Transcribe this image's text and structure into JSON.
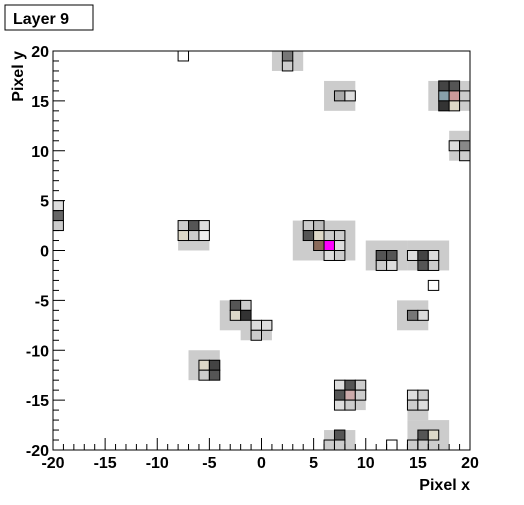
{
  "chart_data": {
    "type": "pixel-map",
    "title": "Layer 9",
    "x_label": "Pixel x",
    "y_label": "Pixel y",
    "xlim": [
      -20,
      20
    ],
    "ylim": [
      -20,
      20
    ],
    "xticks": [
      -20,
      -15,
      -10,
      -5,
      0,
      5,
      10,
      15,
      20
    ],
    "yticks": [
      -20,
      -15,
      -10,
      -5,
      0,
      5,
      10,
      15,
      20
    ],
    "region_color": "#cccccc",
    "regions": [
      {
        "x0": 1,
        "x1": 4,
        "y0": 18,
        "y1": 20
      },
      {
        "x0": 6,
        "x1": 9,
        "y0": 14,
        "y1": 17
      },
      {
        "x0": 16,
        "x1": 20,
        "y0": 14,
        "y1": 17
      },
      {
        "x0": 18,
        "x1": 20,
        "y0": 9,
        "y1": 12
      },
      {
        "x0": -20,
        "x1": -19,
        "y0": 2,
        "y1": 5
      },
      {
        "x0": -8,
        "x1": -5,
        "y0": 0,
        "y1": 3
      },
      {
        "x0": 3,
        "x1": 9,
        "y0": -1,
        "y1": 3
      },
      {
        "x0": 10,
        "x1": 14,
        "y0": -2,
        "y1": 1
      },
      {
        "x0": 14,
        "x1": 18,
        "y0": -2,
        "y1": 1
      },
      {
        "x0": -4,
        "x1": -1,
        "y0": -8,
        "y1": -5
      },
      {
        "x0": -2,
        "x1": 1,
        "y0": -9,
        "y1": -7
      },
      {
        "x0": 13,
        "x1": 16,
        "y0": -8,
        "y1": -5
      },
      {
        "x0": -7,
        "x1": -4,
        "y0": -13,
        "y1": -10
      },
      {
        "x0": 7,
        "x1": 10,
        "y0": -16,
        "y1": -13
      },
      {
        "x0": 14,
        "x1": 16,
        "y0": -17,
        "y1": -14
      },
      {
        "x0": 6,
        "x1": 9,
        "y0": -20,
        "y1": -18
      },
      {
        "x0": 14,
        "x1": 18,
        "y0": -20,
        "y1": -17
      }
    ],
    "cells": [
      {
        "x": -8,
        "y": 19,
        "color": "#ffffff"
      },
      {
        "x": 2,
        "y": 19,
        "color": "#777777"
      },
      {
        "x": 2,
        "y": 18,
        "color": "#cccccc"
      },
      {
        "x": 7,
        "y": 15,
        "color": "#aaaaaa"
      },
      {
        "x": 8,
        "y": 15,
        "color": "#dddddd"
      },
      {
        "x": 17,
        "y": 16,
        "color": "#444444"
      },
      {
        "x": 18,
        "y": 16,
        "color": "#555555"
      },
      {
        "x": 17,
        "y": 15,
        "color": "#88a0aa"
      },
      {
        "x": 18,
        "y": 15,
        "color": "#cc9999"
      },
      {
        "x": 19,
        "y": 15,
        "color": "#cccccc"
      },
      {
        "x": 17,
        "y": 14,
        "color": "#333333"
      },
      {
        "x": 18,
        "y": 14,
        "color": "#ddd8c8"
      },
      {
        "x": 18,
        "y": 10,
        "color": "#dddddd"
      },
      {
        "x": 19,
        "y": 10,
        "color": "#888888"
      },
      {
        "x": 19,
        "y": 9,
        "color": "#cccccc"
      },
      {
        "x": -20,
        "y": 4,
        "color": "#dddddd"
      },
      {
        "x": -20,
        "y": 3,
        "color": "#666666"
      },
      {
        "x": -20,
        "y": 2,
        "color": "#cccccc"
      },
      {
        "x": -8,
        "y": 2,
        "color": "#cccccc"
      },
      {
        "x": -7,
        "y": 2,
        "color": "#555555"
      },
      {
        "x": -6,
        "y": 2,
        "color": "#dddddd"
      },
      {
        "x": -8,
        "y": 1,
        "color": "#ddd8c8"
      },
      {
        "x": -7,
        "y": 1,
        "color": "#cccccc"
      },
      {
        "x": -6,
        "y": 1,
        "color": "#eeeeee"
      },
      {
        "x": 4,
        "y": 2,
        "color": "#cccccc"
      },
      {
        "x": 5,
        "y": 2,
        "color": "#bbbbbb"
      },
      {
        "x": 4,
        "y": 1,
        "color": "#555555"
      },
      {
        "x": 5,
        "y": 1,
        "color": "#ddd8c8"
      },
      {
        "x": 6,
        "y": 1,
        "color": "#cccccc"
      },
      {
        "x": 7,
        "y": 1,
        "color": "#cccccc"
      },
      {
        "x": 5,
        "y": 0,
        "color": "#8a6a5a"
      },
      {
        "x": 6,
        "y": 0,
        "color": "#ff00ff"
      },
      {
        "x": 7,
        "y": 0,
        "color": "#dddddd"
      },
      {
        "x": 6,
        "y": -1,
        "color": "#dddddd"
      },
      {
        "x": 7,
        "y": -1,
        "color": "#cccccc"
      },
      {
        "x": 11,
        "y": -1,
        "color": "#555555"
      },
      {
        "x": 12,
        "y": -1,
        "color": "#555555"
      },
      {
        "x": 11,
        "y": -2,
        "color": "#cccccc"
      },
      {
        "x": 12,
        "y": -2,
        "color": "#dddddd"
      },
      {
        "x": 14,
        "y": -1,
        "color": "#dddddd"
      },
      {
        "x": 15,
        "y": -1,
        "color": "#444444"
      },
      {
        "x": 16,
        "y": -1,
        "color": "#dddddd"
      },
      {
        "x": 15,
        "y": -2,
        "color": "#555555"
      },
      {
        "x": 16,
        "y": -2,
        "color": "#cccccc"
      },
      {
        "x": 16,
        "y": -4,
        "color": "#ffffff"
      },
      {
        "x": -3,
        "y": -6,
        "color": "#555555"
      },
      {
        "x": -2,
        "y": -6,
        "color": "#cccccc"
      },
      {
        "x": -3,
        "y": -7,
        "color": "#ddd8c8"
      },
      {
        "x": -2,
        "y": -7,
        "color": "#333333"
      },
      {
        "x": -1,
        "y": -8,
        "color": "#dddddd"
      },
      {
        "x": 0,
        "y": -8,
        "color": "#dddddd"
      },
      {
        "x": -1,
        "y": -9,
        "color": "#cccccc"
      },
      {
        "x": 14,
        "y": -7,
        "color": "#777777"
      },
      {
        "x": 15,
        "y": -7,
        "color": "#dddddd"
      },
      {
        "x": -6,
        "y": -12,
        "color": "#ddd8c8"
      },
      {
        "x": -5,
        "y": -12,
        "color": "#444444"
      },
      {
        "x": -6,
        "y": -13,
        "color": "#cccccc"
      },
      {
        "x": -5,
        "y": -13,
        "color": "#555555"
      },
      {
        "x": 7,
        "y": -14,
        "color": "#dddddd"
      },
      {
        "x": 8,
        "y": -14,
        "color": "#555555"
      },
      {
        "x": 9,
        "y": -14,
        "color": "#cccccc"
      },
      {
        "x": 7,
        "y": -15,
        "color": "#555555"
      },
      {
        "x": 8,
        "y": -15,
        "color": "#ccaaaa"
      },
      {
        "x": 9,
        "y": -15,
        "color": "#cccccc"
      },
      {
        "x": 7,
        "y": -16,
        "color": "#dddddd"
      },
      {
        "x": 8,
        "y": -16,
        "color": "#cccccc"
      },
      {
        "x": 14,
        "y": -15,
        "color": "#dddddd"
      },
      {
        "x": 15,
        "y": -15,
        "color": "#cccccc"
      },
      {
        "x": 14,
        "y": -16,
        "color": "#cccccc"
      },
      {
        "x": 15,
        "y": -16,
        "color": "#dddddd"
      },
      {
        "x": 7,
        "y": -19,
        "color": "#555555"
      },
      {
        "x": 6,
        "y": -20,
        "color": "#cccccc"
      },
      {
        "x": 7,
        "y": -20,
        "color": "#cccccc"
      },
      {
        "x": 12,
        "y": -20,
        "color": "#ffffff"
      },
      {
        "x": 15,
        "y": -19,
        "color": "#555555"
      },
      {
        "x": 16,
        "y": -19,
        "color": "#ddd8c8"
      },
      {
        "x": 14,
        "y": -20,
        "color": "#cccccc"
      },
      {
        "x": 15,
        "y": -20,
        "color": "#cccccc"
      }
    ]
  }
}
